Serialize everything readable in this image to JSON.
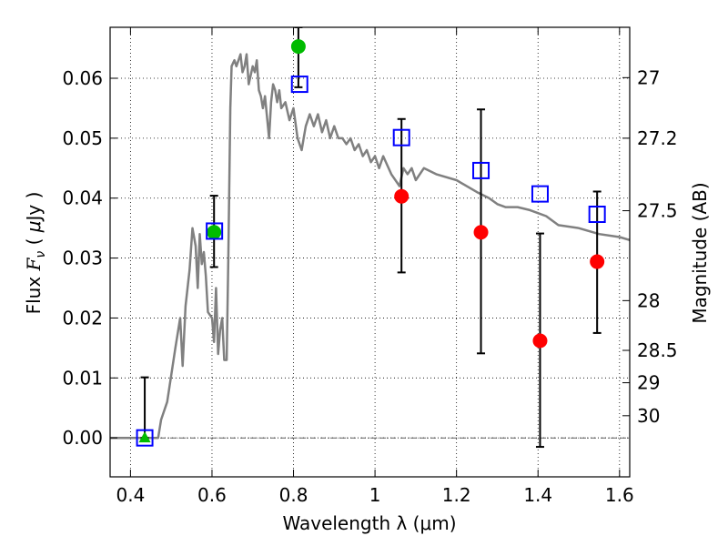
{
  "chart_data": {
    "type": "scatter",
    "xlabel": "Wavelength  λ (μm)",
    "ylabel_parts": [
      "Flux ",
      "F",
      "ν",
      " ( ",
      "μ",
      "Jy )"
    ],
    "y2label": "Magnitude (AB)",
    "xlim": [
      0.35,
      1.625
    ],
    "ylim": [
      -0.0065,
      0.0685
    ],
    "grid": true,
    "x_ticks": [
      0.4,
      0.6,
      0.8,
      1.0,
      1.2,
      1.4,
      1.6
    ],
    "x_tick_labels": [
      "0.4",
      "0.6",
      "0.8",
      "1",
      "1.2",
      "1.4",
      "1.6"
    ],
    "y_ticks": [
      0.0,
      0.01,
      0.02,
      0.03,
      0.04,
      0.05,
      0.06
    ],
    "y_tick_labels": [
      "0.00",
      "0.01",
      "0.02",
      "0.03",
      "0.04",
      "0.05",
      "0.06"
    ],
    "mag_ticks": [
      {
        "flux": 0.0601,
        "label": "27"
      },
      {
        "flux": 0.05,
        "label": "27.2"
      },
      {
        "flux": 0.0379,
        "label": "27.5"
      },
      {
        "flux": 0.0229,
        "label": "28"
      },
      {
        "flux": 0.0146,
        "label": "28.5"
      },
      {
        "flux": 0.0092,
        "label": "29"
      },
      {
        "flux": 0.0037,
        "label": "30"
      }
    ],
    "colors": {
      "model": "#808080",
      "observed": "#ff0000",
      "green": "#00bb00",
      "model_flux": "#0000ff",
      "errorbar": "#000000"
    },
    "series": [
      {
        "name": "model spectrum",
        "style": "line",
        "x": [
          0.35,
          0.468,
          0.475,
          0.49,
          0.51,
          0.522,
          0.528,
          0.535,
          0.545,
          0.552,
          0.56,
          0.565,
          0.57,
          0.575,
          0.58,
          0.585,
          0.59,
          0.6,
          0.605,
          0.61,
          0.615,
          0.62,
          0.625,
          0.63,
          0.636,
          0.64,
          0.645,
          0.648,
          0.655,
          0.66,
          0.665,
          0.67,
          0.675,
          0.68,
          0.685,
          0.69,
          0.7,
          0.705,
          0.71,
          0.715,
          0.72,
          0.725,
          0.73,
          0.74,
          0.745,
          0.75,
          0.755,
          0.76,
          0.765,
          0.77,
          0.78,
          0.79,
          0.8,
          0.81,
          0.82,
          0.825,
          0.83,
          0.84,
          0.85,
          0.86,
          0.87,
          0.88,
          0.89,
          0.9,
          0.91,
          0.92,
          0.93,
          0.94,
          0.95,
          0.96,
          0.97,
          0.98,
          0.99,
          1.0,
          1.01,
          1.02,
          1.04,
          1.06,
          1.07,
          1.08,
          1.09,
          1.1,
          1.12,
          1.15,
          1.2,
          1.25,
          1.28,
          1.3,
          1.32,
          1.35,
          1.38,
          1.4,
          1.42,
          1.45,
          1.5,
          1.55,
          1.6,
          1.625
        ],
        "y": [
          0.0,
          0.0,
          0.003,
          0.006,
          0.015,
          0.02,
          0.012,
          0.022,
          0.028,
          0.035,
          0.032,
          0.025,
          0.034,
          0.029,
          0.031,
          0.027,
          0.021,
          0.02,
          0.016,
          0.025,
          0.014,
          0.018,
          0.02,
          0.013,
          0.013,
          0.03,
          0.055,
          0.062,
          0.063,
          0.062,
          0.063,
          0.064,
          0.061,
          0.062,
          0.064,
          0.059,
          0.062,
          0.061,
          0.063,
          0.058,
          0.057,
          0.055,
          0.057,
          0.05,
          0.056,
          0.059,
          0.058,
          0.056,
          0.058,
          0.055,
          0.056,
          0.053,
          0.055,
          0.05,
          0.048,
          0.05,
          0.052,
          0.054,
          0.052,
          0.054,
          0.051,
          0.053,
          0.05,
          0.052,
          0.05,
          0.05,
          0.049,
          0.05,
          0.048,
          0.049,
          0.047,
          0.048,
          0.046,
          0.047,
          0.045,
          0.047,
          0.044,
          0.042,
          0.045,
          0.044,
          0.045,
          0.043,
          0.045,
          0.044,
          0.043,
          0.041,
          0.04,
          0.039,
          0.0385,
          0.0385,
          0.038,
          0.0375,
          0.037,
          0.0355,
          0.035,
          0.034,
          0.0335,
          0.033
        ]
      },
      {
        "name": "observed photometry",
        "style": "points",
        "marker": "circle",
        "color": "#ff0000",
        "x": [
          1.065,
          1.26,
          1.405,
          1.545
        ],
        "y": [
          0.0403,
          0.0343,
          0.0162,
          0.0294
        ],
        "yerr_low": [
          0.0276,
          0.0141,
          -0.0015,
          0.0175
        ],
        "yerr_high": [
          0.0532,
          0.0548,
          0.0341,
          0.0411
        ]
      },
      {
        "name": "green photometry",
        "style": "points",
        "marker": "circle",
        "color": "#00bb00",
        "x": [
          0.605,
          0.812
        ],
        "y": [
          0.0343,
          0.0653
        ],
        "yerr_low": [
          0.0285,
          0.0585
        ],
        "yerr_high": [
          0.0404,
          0.0685
        ]
      },
      {
        "name": "upper limit",
        "style": "points",
        "marker": "triangle",
        "color": "#00bb00",
        "x": [
          0.435
        ],
        "y": [
          0.0
        ],
        "yerr_low": [
          0.0
        ],
        "yerr_high": [
          0.0101
        ]
      },
      {
        "name": "model fluxes",
        "style": "points",
        "marker": "square-open",
        "color": "#0000ff",
        "x": [
          0.435,
          0.606,
          0.815,
          1.065,
          1.26,
          1.405,
          1.545
        ],
        "y": [
          0.0,
          0.0345,
          0.059,
          0.0501,
          0.0446,
          0.0407,
          0.0373
        ]
      }
    ]
  }
}
